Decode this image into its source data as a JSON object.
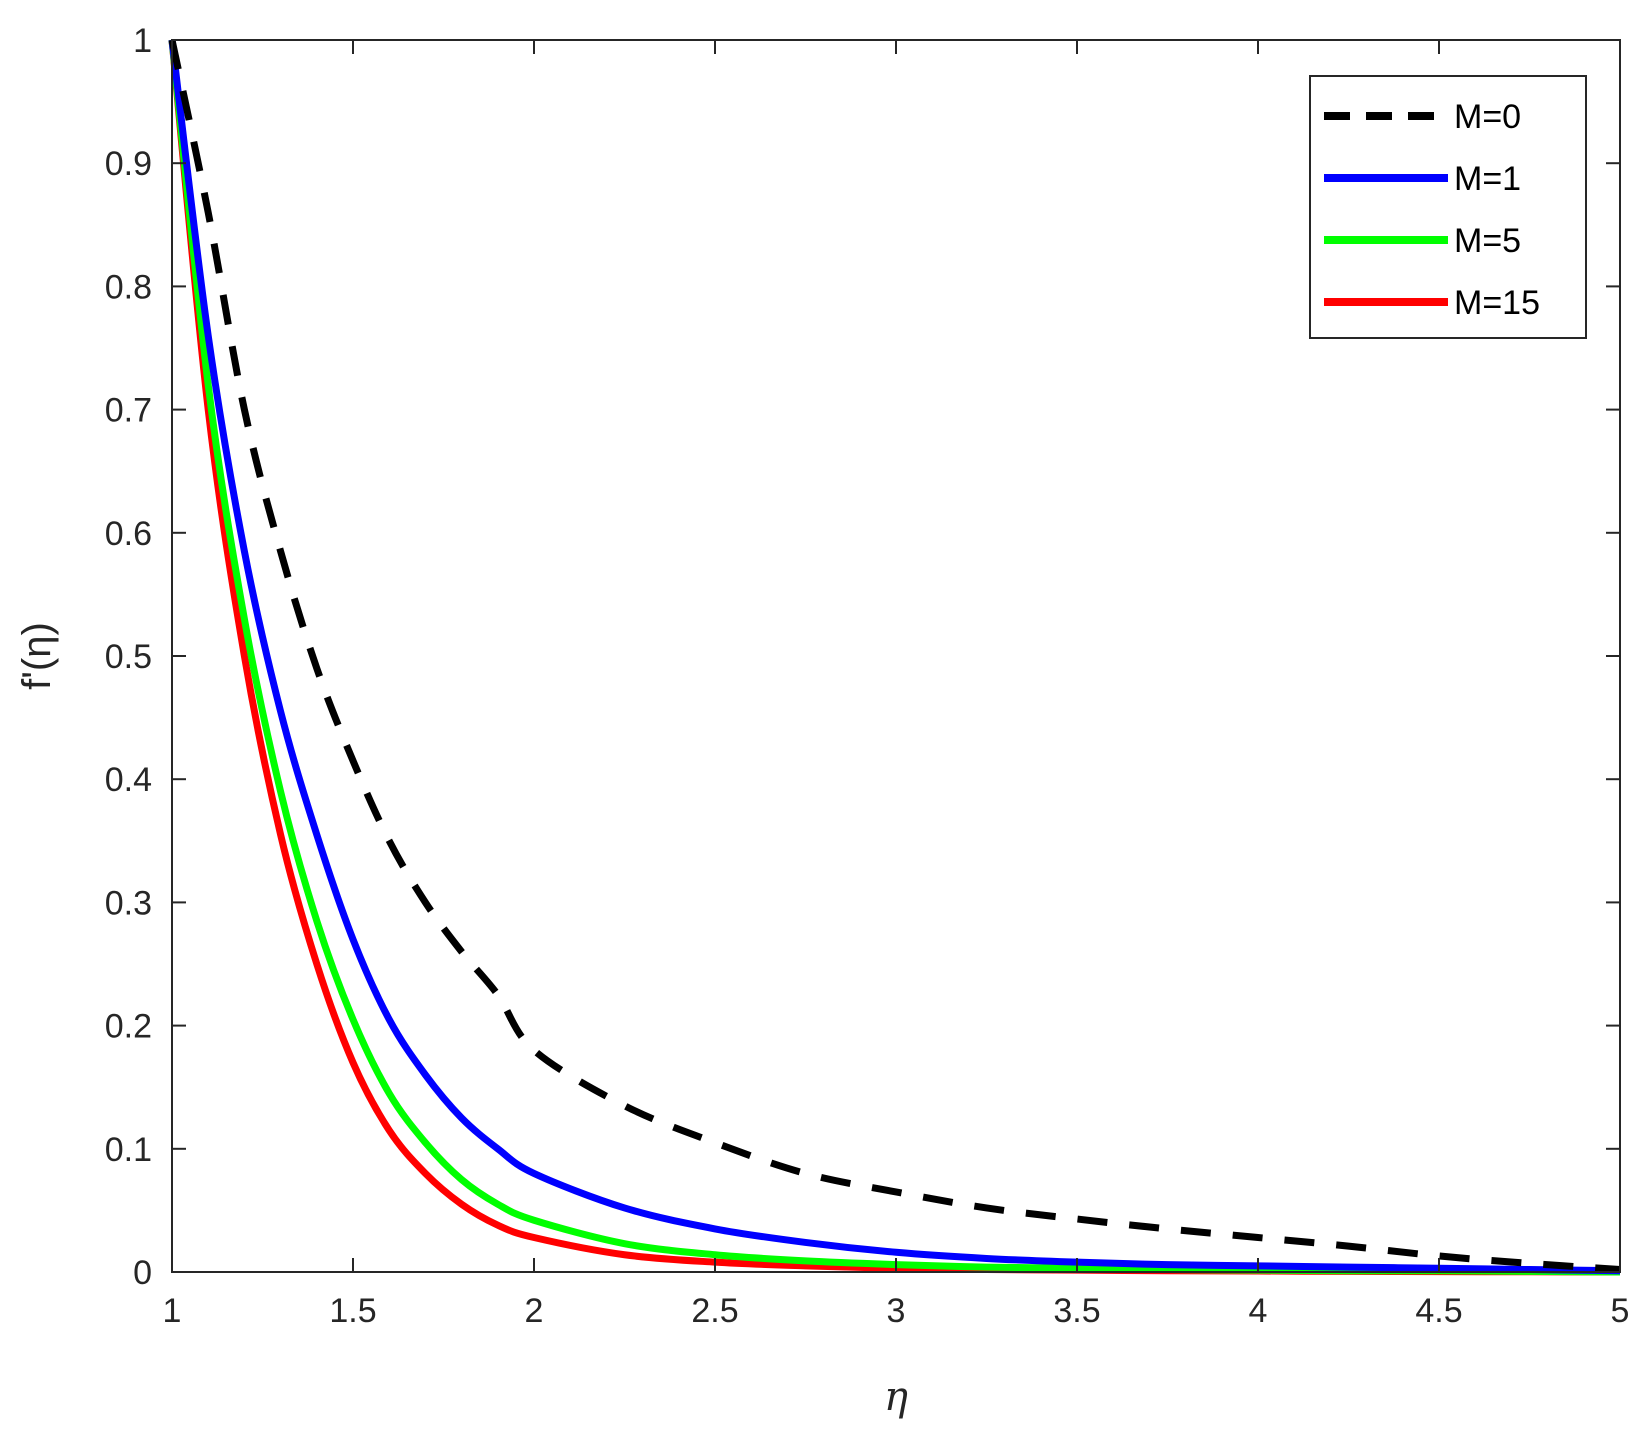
{
  "chart_data": {
    "type": "line",
    "xlabel": "η",
    "ylabel": "f'(η)",
    "xlim": [
      1,
      5
    ],
    "ylim": [
      0,
      1
    ],
    "xticks": [
      "1",
      "1.5",
      "2",
      "2.5",
      "3",
      "3.5",
      "4",
      "4.5",
      "5"
    ],
    "yticks": [
      "0",
      "0.1",
      "0.2",
      "0.3",
      "0.4",
      "0.5",
      "0.6",
      "0.7",
      "0.8",
      "0.9",
      "1"
    ],
    "grid": false,
    "legend_position": "top-right",
    "x": [
      1.0,
      1.1,
      1.2,
      1.3,
      1.4,
      1.5,
      1.6,
      1.7,
      1.8,
      1.9,
      2.0,
      2.25,
      2.5,
      2.75,
      3.0,
      3.25,
      3.5,
      3.75,
      4.0,
      4.25,
      4.5,
      4.75,
      5.0
    ],
    "series": [
      {
        "name": "M=0",
        "color": "#000000",
        "dash": true,
        "values": [
          1.0,
          0.86,
          0.7,
          0.585,
          0.49,
          0.415,
          0.35,
          0.3,
          0.26,
          0.225,
          0.18,
          0.135,
          0.105,
          0.08,
          0.065,
          0.052,
          0.043,
          0.035,
          0.028,
          0.021,
          0.013,
          0.007,
          0.002
        ]
      },
      {
        "name": "M=1",
        "color": "#0000ff",
        "dash": false,
        "values": [
          1.0,
          0.76,
          0.585,
          0.455,
          0.355,
          0.27,
          0.205,
          0.16,
          0.125,
          0.1,
          0.08,
          0.052,
          0.035,
          0.024,
          0.016,
          0.011,
          0.008,
          0.006,
          0.005,
          0.004,
          0.003,
          0.002,
          0.001
        ]
      },
      {
        "name": "M=5",
        "color": "#00ff00",
        "dash": false,
        "values": [
          1.0,
          0.72,
          0.53,
          0.39,
          0.285,
          0.205,
          0.145,
          0.105,
          0.075,
          0.055,
          0.042,
          0.023,
          0.014,
          0.009,
          0.006,
          0.004,
          0.003,
          0.002,
          0.0015,
          0.001,
          0.001,
          0.0005,
          0.0
        ]
      },
      {
        "name": "M=15",
        "color": "#ff0000",
        "dash": false,
        "values": [
          1.0,
          0.7,
          0.5,
          0.355,
          0.25,
          0.17,
          0.115,
          0.08,
          0.055,
          0.038,
          0.028,
          0.014,
          0.008,
          0.005,
          0.003,
          0.002,
          0.0015,
          0.001,
          0.0008,
          0.0005,
          0.0003,
          0.0002,
          0.0
        ]
      }
    ]
  }
}
